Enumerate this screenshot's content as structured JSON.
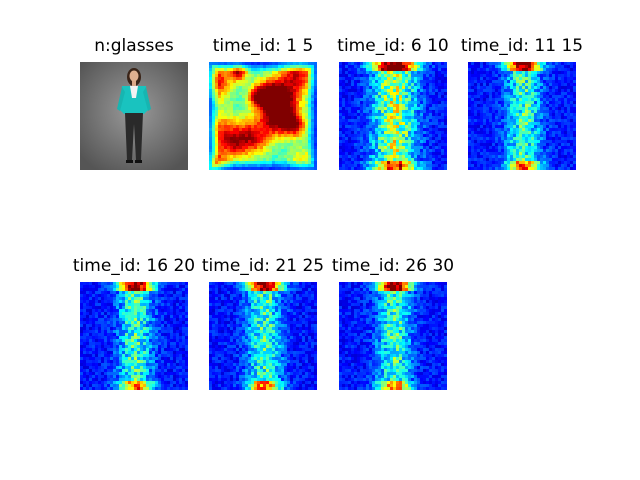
{
  "figure": {
    "panels": [
      {
        "title": "n:glasses",
        "kind": "photo"
      },
      {
        "title": "time_id: 1 5",
        "kind": "heatmap"
      },
      {
        "title": "time_id: 6 10",
        "kind": "heatmap"
      },
      {
        "title": "time_id: 11 15",
        "kind": "heatmap"
      },
      {
        "title": "time_id: 16 20",
        "kind": "heatmap"
      },
      {
        "title": "time_id: 21 25",
        "kind": "heatmap"
      },
      {
        "title": "time_id: 26 30",
        "kind": "heatmap"
      }
    ],
    "colormap": "jet",
    "colors": {
      "background": "#ffffff",
      "photo_backdrop": "#6f6f6f",
      "jacket": "#19c3bf",
      "heat_low": "#00008f",
      "heat_high": "#ff0000"
    }
  }
}
